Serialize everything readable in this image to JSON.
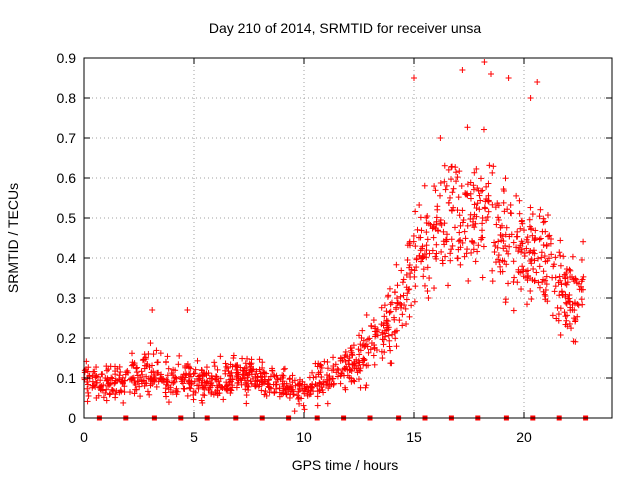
{
  "chart_data": {
    "type": "scatter",
    "title": "Day 210 of 2014, SRMTID for receiver unsa",
    "xlabel": "GPS time / hours",
    "ylabel": "SRMTID / TECUs",
    "xlim": [
      0,
      24
    ],
    "ylim": [
      0,
      0.9
    ],
    "x_ticks": [
      0,
      5,
      10,
      15,
      20
    ],
    "y_ticks": [
      0,
      0.1,
      0.2,
      0.3,
      0.4,
      0.5,
      0.6,
      0.7,
      0.8,
      0.9
    ],
    "grid": true,
    "marker": "+",
    "color": "#ff0000",
    "trend": [
      {
        "x": 0.0,
        "y": 0.1,
        "spread": 0.05
      },
      {
        "x": 1.0,
        "y": 0.08,
        "spread": 0.05
      },
      {
        "x": 2.0,
        "y": 0.1,
        "spread": 0.05
      },
      {
        "x": 3.0,
        "y": 0.12,
        "spread": 0.06
      },
      {
        "x": 4.0,
        "y": 0.1,
        "spread": 0.05
      },
      {
        "x": 5.0,
        "y": 0.09,
        "spread": 0.05
      },
      {
        "x": 6.0,
        "y": 0.09,
        "spread": 0.05
      },
      {
        "x": 7.0,
        "y": 0.11,
        "spread": 0.05
      },
      {
        "x": 8.0,
        "y": 0.1,
        "spread": 0.05
      },
      {
        "x": 9.0,
        "y": 0.08,
        "spread": 0.04
      },
      {
        "x": 10.0,
        "y": 0.06,
        "spread": 0.04
      },
      {
        "x": 11.0,
        "y": 0.11,
        "spread": 0.06
      },
      {
        "x": 12.0,
        "y": 0.13,
        "spread": 0.06
      },
      {
        "x": 13.0,
        "y": 0.18,
        "spread": 0.08
      },
      {
        "x": 14.0,
        "y": 0.25,
        "spread": 0.1
      },
      {
        "x": 15.0,
        "y": 0.38,
        "spread": 0.14
      },
      {
        "x": 16.0,
        "y": 0.48,
        "spread": 0.16
      },
      {
        "x": 17.0,
        "y": 0.5,
        "spread": 0.17
      },
      {
        "x": 18.0,
        "y": 0.52,
        "spread": 0.18
      },
      {
        "x": 19.0,
        "y": 0.45,
        "spread": 0.16
      },
      {
        "x": 20.0,
        "y": 0.42,
        "spread": 0.15
      },
      {
        "x": 21.0,
        "y": 0.4,
        "spread": 0.15
      },
      {
        "x": 22.0,
        "y": 0.3,
        "spread": 0.1
      },
      {
        "x": 22.7,
        "y": 0.33,
        "spread": 0.1
      }
    ],
    "extreme_points": [
      {
        "x": 15.0,
        "y": 0.85
      },
      {
        "x": 17.2,
        "y": 0.87
      },
      {
        "x": 18.2,
        "y": 0.89
      },
      {
        "x": 18.5,
        "y": 0.86
      },
      {
        "x": 19.3,
        "y": 0.85
      },
      {
        "x": 20.6,
        "y": 0.84
      },
      {
        "x": 20.3,
        "y": 0.8
      },
      {
        "x": 16.2,
        "y": 0.7
      },
      {
        "x": 4.7,
        "y": 0.27
      },
      {
        "x": 3.1,
        "y": 0.27
      }
    ],
    "baseline_markers_x": [
      0.7,
      1.9,
      3.2,
      4.4,
      5.6,
      6.9,
      8.1,
      9.3,
      10.6,
      11.8,
      13.0,
      14.3,
      15.5,
      16.7,
      17.9,
      19.2,
      20.4,
      21.6,
      22.8
    ]
  }
}
